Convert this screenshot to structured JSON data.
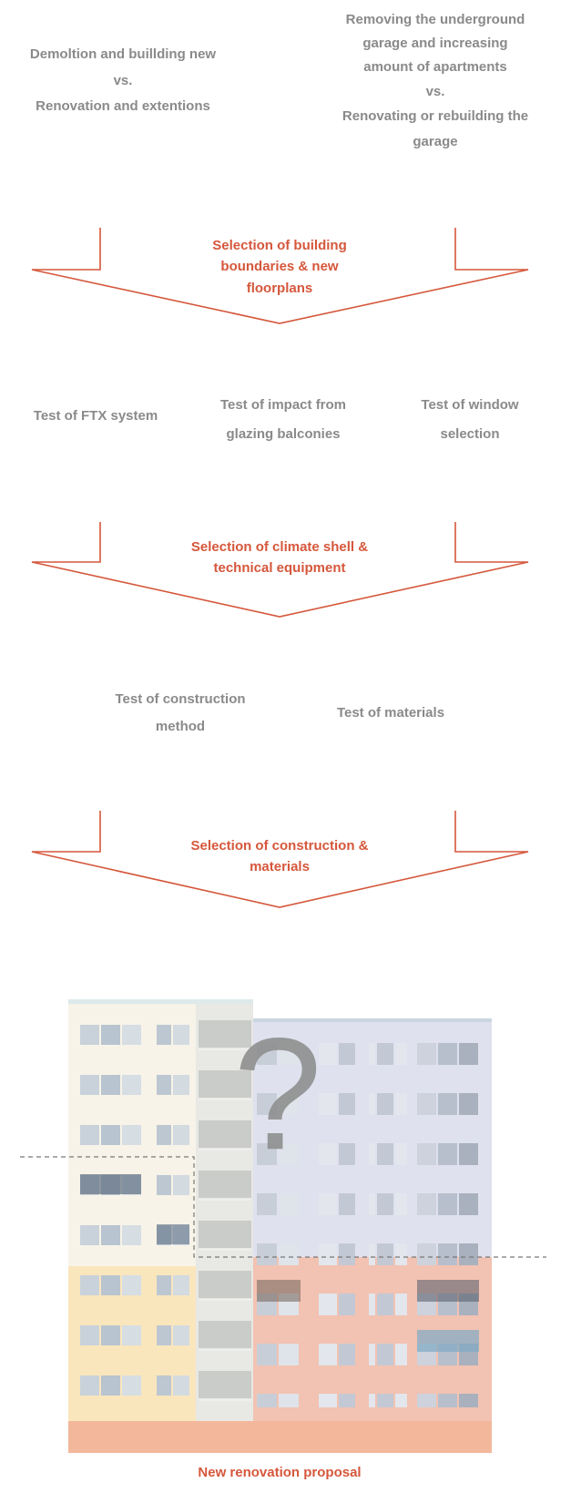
{
  "stage1": {
    "options": [
      {
        "lines": [
          "Demoltion and buillding new",
          "vs.",
          "Renovation and extentions"
        ]
      },
      {
        "lines": [
          "Removing the underground",
          "garage and increasing",
          "amount of apartments",
          "vs.",
          "Renovating or rebuilding the",
          "garage"
        ]
      }
    ],
    "selection": {
      "lines": [
        "Selection of building",
        "boundaries & new",
        "floorplans"
      ]
    }
  },
  "stage2": {
    "options": [
      {
        "lines": [
          "Test of FTX system"
        ]
      },
      {
        "lines": [
          "Test of impact from",
          "glazing balconies"
        ]
      },
      {
        "lines": [
          "Test of window",
          "selection"
        ]
      }
    ],
    "selection": {
      "lines": [
        "Selection of climate shell &",
        "technical equipment"
      ]
    }
  },
  "stage3": {
    "options": [
      {
        "lines": [
          "Test of construction",
          "method"
        ]
      },
      {
        "lines": [
          "Test of materials"
        ]
      }
    ],
    "selection": {
      "lines": [
        "Selection of construction &",
        "materials"
      ]
    }
  },
  "result": {
    "symbol": "?",
    "caption": "New renovation proposal"
  }
}
